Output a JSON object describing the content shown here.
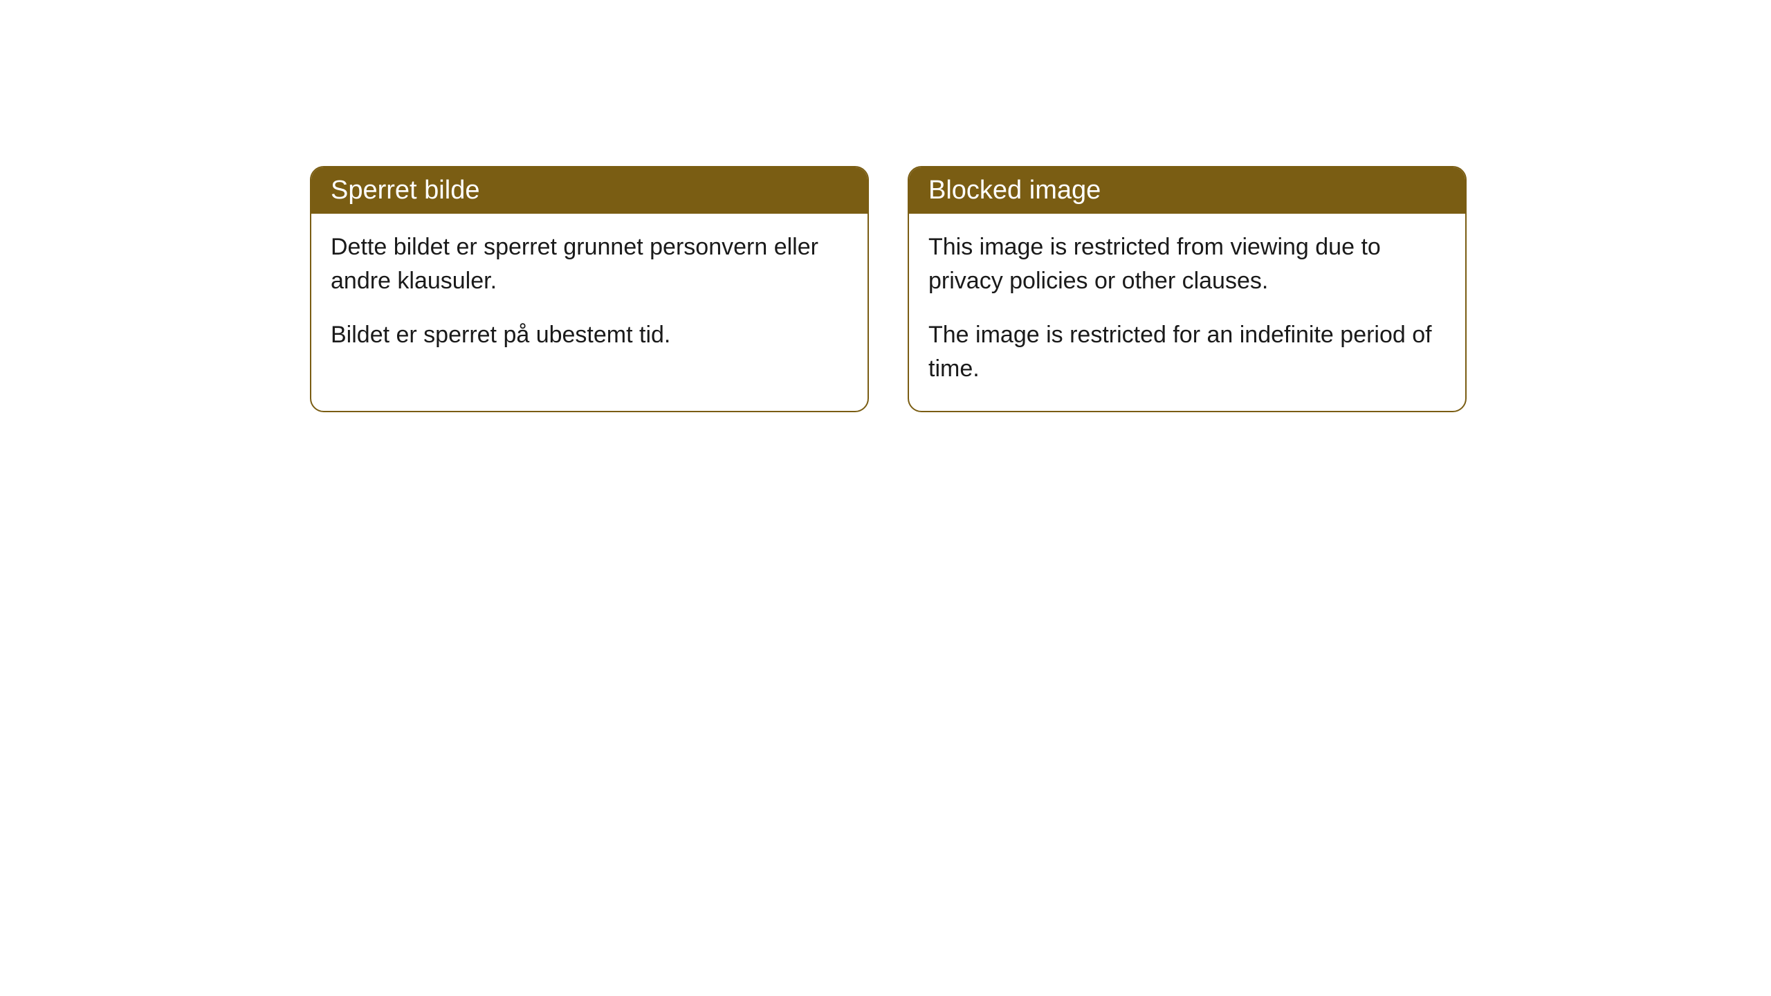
{
  "styling": {
    "header_bg_color": "#7a5d13",
    "header_text_color": "#ffffff",
    "border_color": "#7a5d13",
    "body_text_color": "#1a1a1a",
    "card_bg_color": "#ffffff",
    "page_bg_color": "#ffffff",
    "border_radius": 20,
    "header_fontsize": 38,
    "body_fontsize": 34
  },
  "cards": {
    "norwegian": {
      "title": "Sperret bilde",
      "paragraph1": "Dette bildet er sperret grunnet personvern eller andre klausuler.",
      "paragraph2": "Bildet er sperret på ubestemt tid."
    },
    "english": {
      "title": "Blocked image",
      "paragraph1": "This image is restricted from viewing due to privacy policies or other clauses.",
      "paragraph2": "The image is restricted for an indefinite period of time."
    }
  }
}
